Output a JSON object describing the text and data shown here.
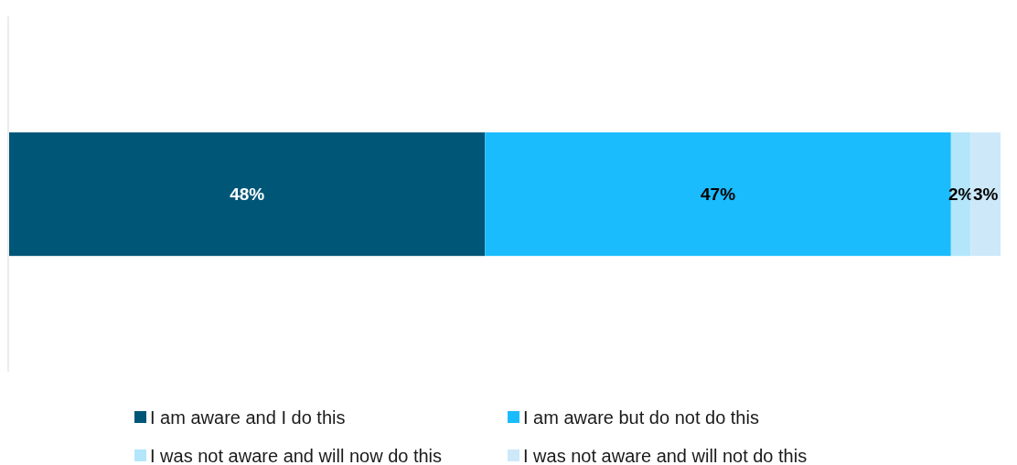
{
  "chart_data": {
    "type": "bar",
    "orientation": "horizontal",
    "stacked": true,
    "categories": [
      null
    ],
    "legend": "bottom",
    "series": [
      {
        "name": "I am aware and I do this",
        "color": "#005677",
        "values": [
          48
        ],
        "value_labels": [
          "48%"
        ]
      },
      {
        "name": "I am aware but do not do this",
        "color": "#1abcfe",
        "values": [
          47
        ],
        "value_labels": [
          "47%"
        ]
      },
      {
        "name": "I was not aware and will now do this",
        "color": "#b3e6fb",
        "values": [
          2
        ],
        "value_labels": [
          "2%"
        ]
      },
      {
        "name": "I was not aware and will not do this",
        "color": "#cde8f9",
        "values": [
          3
        ],
        "value_labels": [
          "3%"
        ]
      }
    ]
  }
}
